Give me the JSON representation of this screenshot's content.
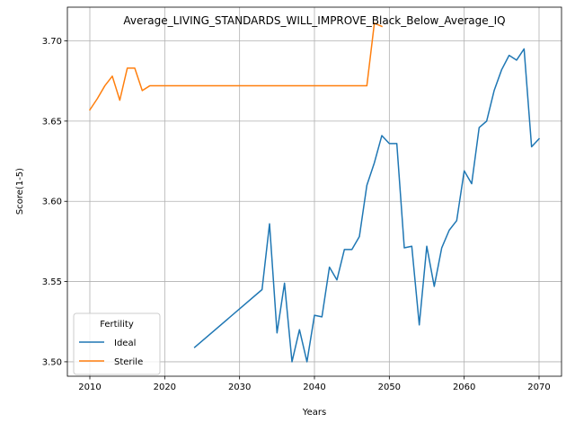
{
  "chart_data": {
    "type": "line",
    "title": "Average_LIVING_STANDARDS_WILL_IMPROVE_Black_Below_Average_IQ",
    "xlabel": "Years",
    "ylabel": "Score(1-5)",
    "xlim": [
      2007,
      2073
    ],
    "ylim": [
      3.491,
      3.721
    ],
    "xticks": [
      2010,
      2020,
      2030,
      2040,
      2050,
      2060,
      2070
    ],
    "yticks": [
      3.5,
      3.55,
      3.6,
      3.65,
      3.7
    ],
    "xtick_labels": [
      "2010",
      "2020",
      "2030",
      "2040",
      "2050",
      "2060",
      "2070"
    ],
    "ytick_labels": [
      "3.50",
      "3.55",
      "3.60",
      "3.65",
      "3.70"
    ],
    "grid": true,
    "legend": {
      "title": "Fertility",
      "placement": "lower-left"
    },
    "series": [
      {
        "name": "Ideal",
        "color": "#1f77b4",
        "x": [
          2024,
          2033,
          2034,
          2035,
          2036,
          2037,
          2038,
          2039,
          2040,
          2041,
          2042,
          2043,
          2044,
          2045,
          2046,
          2047,
          2048,
          2049,
          2050,
          2051,
          2052,
          2053,
          2054,
          2055,
          2056,
          2057,
          2058,
          2059,
          2060,
          2061,
          2062,
          2063,
          2064,
          2065,
          2066,
          2067,
          2068,
          2069,
          2070
        ],
        "y": [
          3.509,
          3.545,
          3.586,
          3.518,
          3.549,
          3.5,
          3.52,
          3.5,
          3.529,
          3.528,
          3.559,
          3.551,
          3.57,
          3.57,
          3.578,
          3.61,
          3.624,
          3.641,
          3.636,
          3.636,
          3.571,
          3.572,
          3.523,
          3.572,
          3.547,
          3.571,
          3.582,
          3.588,
          3.619,
          3.611,
          3.646,
          3.65,
          3.669,
          3.682,
          3.691,
          3.688,
          3.695,
          3.634,
          3.639
        ]
      },
      {
        "name": "Sterile",
        "color": "#ff7f0e",
        "x": [
          2010,
          2011,
          2012,
          2013,
          2014,
          2015,
          2016,
          2017,
          2018,
          2047,
          2048,
          2049
        ],
        "y": [
          3.657,
          3.664,
          3.672,
          3.678,
          3.663,
          3.683,
          3.683,
          3.669,
          3.672,
          3.672,
          3.711,
          3.709
        ]
      }
    ]
  }
}
